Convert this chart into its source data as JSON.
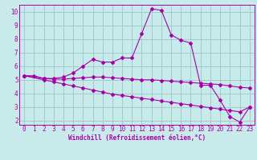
{
  "bg_color": "#c8eaea",
  "grid_color": "#a0cccc",
  "line_color": "#aa00aa",
  "xlabel": "Windchill (Refroidissement éolien,°C)",
  "xlim": [
    -0.5,
    23.5
  ],
  "ylim": [
    1.7,
    10.5
  ],
  "yticks": [
    2,
    3,
    4,
    5,
    6,
    7,
    8,
    9,
    10
  ],
  "xticks": [
    0,
    1,
    2,
    3,
    4,
    5,
    6,
    7,
    8,
    9,
    10,
    11,
    12,
    13,
    14,
    15,
    16,
    17,
    18,
    19,
    20,
    21,
    22,
    23
  ],
  "line1_x": [
    0,
    1,
    2,
    3,
    4,
    5,
    6,
    7,
    8,
    9,
    10,
    11,
    12,
    13,
    14,
    15,
    16,
    17,
    18,
    19,
    20,
    21,
    22,
    23
  ],
  "line1_y": [
    5.3,
    5.3,
    5.1,
    5.1,
    5.2,
    5.5,
    6.0,
    6.5,
    6.3,
    6.3,
    6.6,
    6.6,
    8.4,
    10.2,
    10.1,
    8.3,
    7.9,
    7.7,
    4.6,
    4.6,
    3.5,
    2.3,
    1.9,
    3.0
  ],
  "line2_x": [
    0,
    2,
    3,
    4,
    5,
    6,
    7,
    8,
    9,
    10,
    11,
    12,
    13,
    14,
    15,
    16,
    17,
    18,
    19,
    20,
    21,
    22,
    23
  ],
  "line2_y": [
    5.3,
    5.1,
    5.05,
    5.05,
    5.1,
    5.15,
    5.2,
    5.2,
    5.15,
    5.1,
    5.05,
    5.0,
    5.0,
    4.95,
    4.9,
    4.85,
    4.8,
    4.75,
    4.7,
    4.65,
    4.55,
    4.45,
    4.4
  ],
  "line3_x": [
    0,
    2,
    3,
    4,
    5,
    6,
    7,
    8,
    9,
    10,
    11,
    12,
    13,
    14,
    15,
    16,
    17,
    18,
    19,
    20,
    21,
    22,
    23
  ],
  "line3_y": [
    5.3,
    5.0,
    4.85,
    4.7,
    4.55,
    4.4,
    4.25,
    4.1,
    3.95,
    3.85,
    3.75,
    3.65,
    3.55,
    3.45,
    3.35,
    3.25,
    3.15,
    3.05,
    2.95,
    2.85,
    2.75,
    2.65,
    3.0
  ],
  "marker": "D",
  "markersize": 2.0,
  "linewidth": 0.8,
  "tick_fontsize": 5.5,
  "xlabel_fontsize": 5.5
}
